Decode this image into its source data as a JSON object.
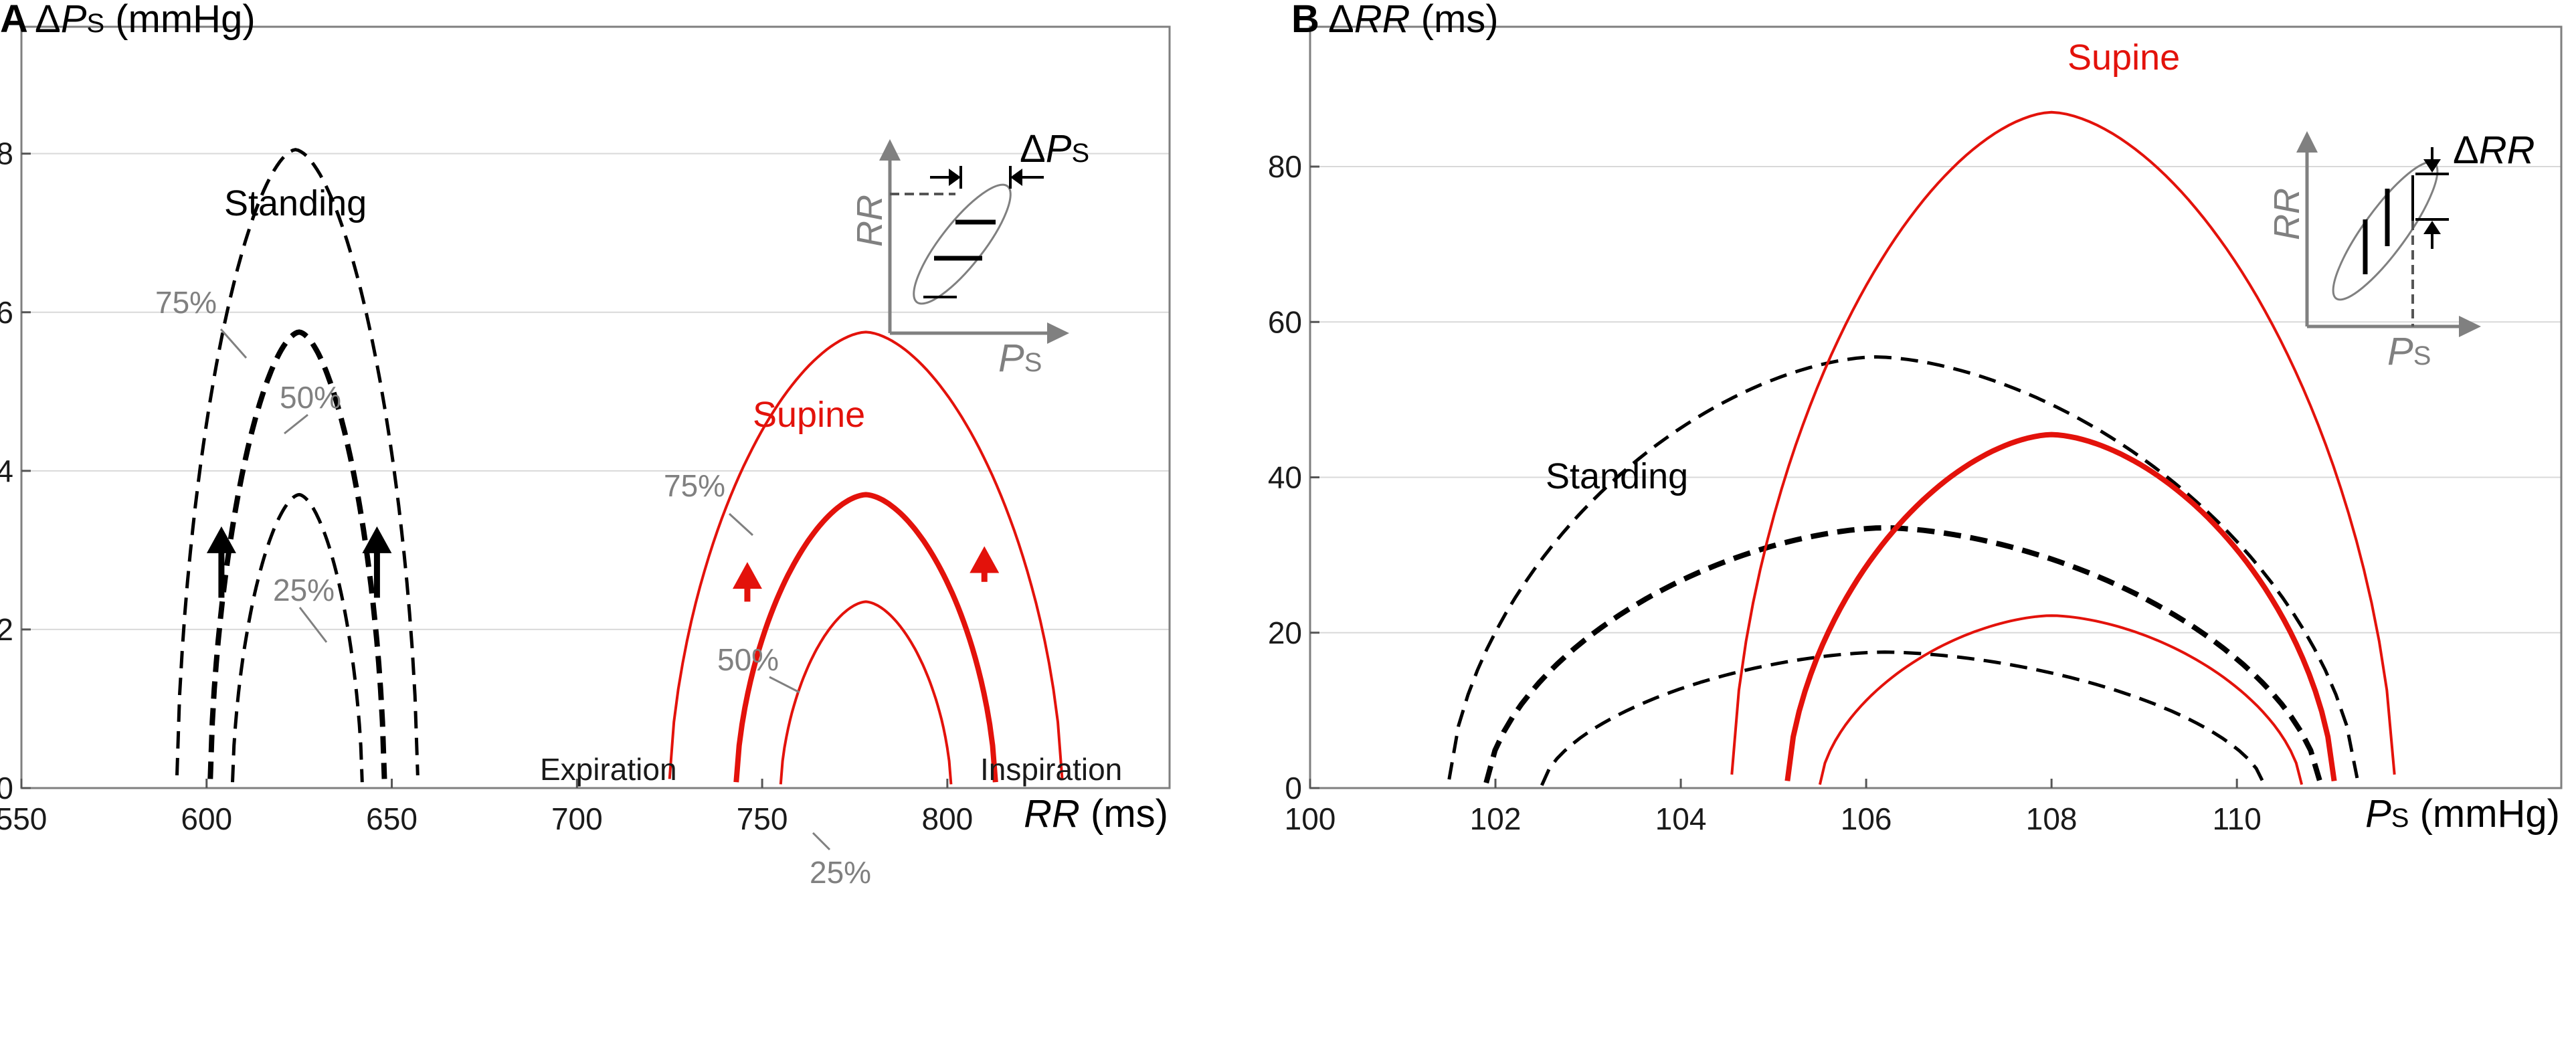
{
  "chart_data": [
    {
      "type": "line",
      "panel": "A",
      "ylabel": {
        "delta": "Δ",
        "var": "P",
        "sub": "S",
        "unit": " (mmHg)"
      },
      "xlabel": {
        "var": "RR",
        "unit": " (ms)"
      },
      "xlim": [
        550,
        860
      ],
      "ylim": [
        0,
        9.6
      ],
      "xticks": [
        550,
        600,
        650,
        700,
        750,
        800
      ],
      "yticks": [
        0,
        2,
        4,
        6,
        8
      ],
      "grid": "horizontal",
      "colors": {
        "standing": "#000000",
        "supine": "#e3120b"
      },
      "series": [
        {
          "name": "Standing 75%",
          "group": "Standing",
          "percent": "75%",
          "style": "dashed",
          "x_left": 592,
          "x_right": 657,
          "x_peak": 624,
          "peak": 8.05
        },
        {
          "name": "Standing 50%",
          "group": "Standing",
          "percent": "50%",
          "style": "dashed-bold",
          "x_left": 601,
          "x_right": 648,
          "x_peak": 625,
          "peak": 5.75
        },
        {
          "name": "Standing 25%",
          "group": "Standing",
          "percent": "25%",
          "style": "dashed",
          "x_left": 607,
          "x_right": 642,
          "x_peak": 625,
          "peak": 3.7
        },
        {
          "name": "Supine 75%",
          "group": "Supine",
          "percent": "75%",
          "style": "solid",
          "x_left": 725,
          "x_right": 831,
          "x_peak": 778,
          "peak": 5.75
        },
        {
          "name": "Supine 50%",
          "group": "Supine",
          "percent": "50%",
          "style": "solid-bold",
          "x_left": 743,
          "x_right": 813,
          "x_peak": 778,
          "peak": 3.7
        },
        {
          "name": "Supine 25%",
          "group": "Supine",
          "percent": "25%",
          "style": "solid",
          "x_left": 755,
          "x_right": 801,
          "x_peak": 778,
          "peak": 2.35
        }
      ],
      "annotations": {
        "standing": "Standing",
        "supine": "Supine",
        "expiration": "Expiration",
        "inspiration": "Inspiration",
        "p75": "75%",
        "p50": "50%",
        "p25": "25%"
      },
      "inset": {
        "y_axis": "RR",
        "x_axis_var": "P",
        "x_axis_sub": "S",
        "measure_delta": "Δ",
        "measure_var": "P",
        "measure_sub": "S"
      }
    },
    {
      "type": "line",
      "panel": "B",
      "ylabel": {
        "delta": "Δ",
        "var": "RR",
        "unit": " (ms)"
      },
      "xlabel": {
        "var": "P",
        "sub": "S",
        "unit": " (mmHg)"
      },
      "xlim": [
        100,
        113.5
      ],
      "ylim": [
        0,
        98
      ],
      "xticks": [
        100,
        102,
        104,
        106,
        108,
        110
      ],
      "yticks": [
        0,
        20,
        40,
        60,
        80
      ],
      "grid": "horizontal",
      "colors": {
        "standing": "#000000",
        "supine": "#e3120b"
      },
      "series": [
        {
          "name": "Standing 75%",
          "group": "Standing",
          "style": "dashed",
          "x_left": 101.5,
          "x_right": 111.3,
          "x_peak": 106.1,
          "peak": 55.5
        },
        {
          "name": "Standing 50%",
          "group": "Standing",
          "style": "dashed-bold",
          "x_left": 101.9,
          "x_right": 110.9,
          "x_peak": 106.2,
          "peak": 33.5
        },
        {
          "name": "Standing 25%",
          "group": "Standing",
          "style": "dashed",
          "x_left": 102.5,
          "x_right": 110.3,
          "x_peak": 106.2,
          "peak": 17.5
        },
        {
          "name": "Supine 75%",
          "group": "Supine",
          "style": "solid",
          "x_left": 104.55,
          "x_right": 111.7,
          "x_peak": 108.0,
          "peak": 87.0
        },
        {
          "name": "Supine 50%",
          "group": "Supine",
          "style": "solid-bold",
          "x_left": 105.15,
          "x_right": 111.05,
          "x_peak": 108.0,
          "peak": 45.5
        },
        {
          "name": "Supine 25%",
          "group": "Supine",
          "style": "solid",
          "x_left": 105.5,
          "x_right": 110.7,
          "x_peak": 108.0,
          "peak": 22.2
        }
      ],
      "annotations": {
        "standing": "Standing",
        "supine": "Supine"
      },
      "inset": {
        "y_axis": "RR",
        "x_axis_var": "P",
        "x_axis_sub": "S",
        "measure_delta": "Δ",
        "measure_var": "RR"
      }
    }
  ]
}
